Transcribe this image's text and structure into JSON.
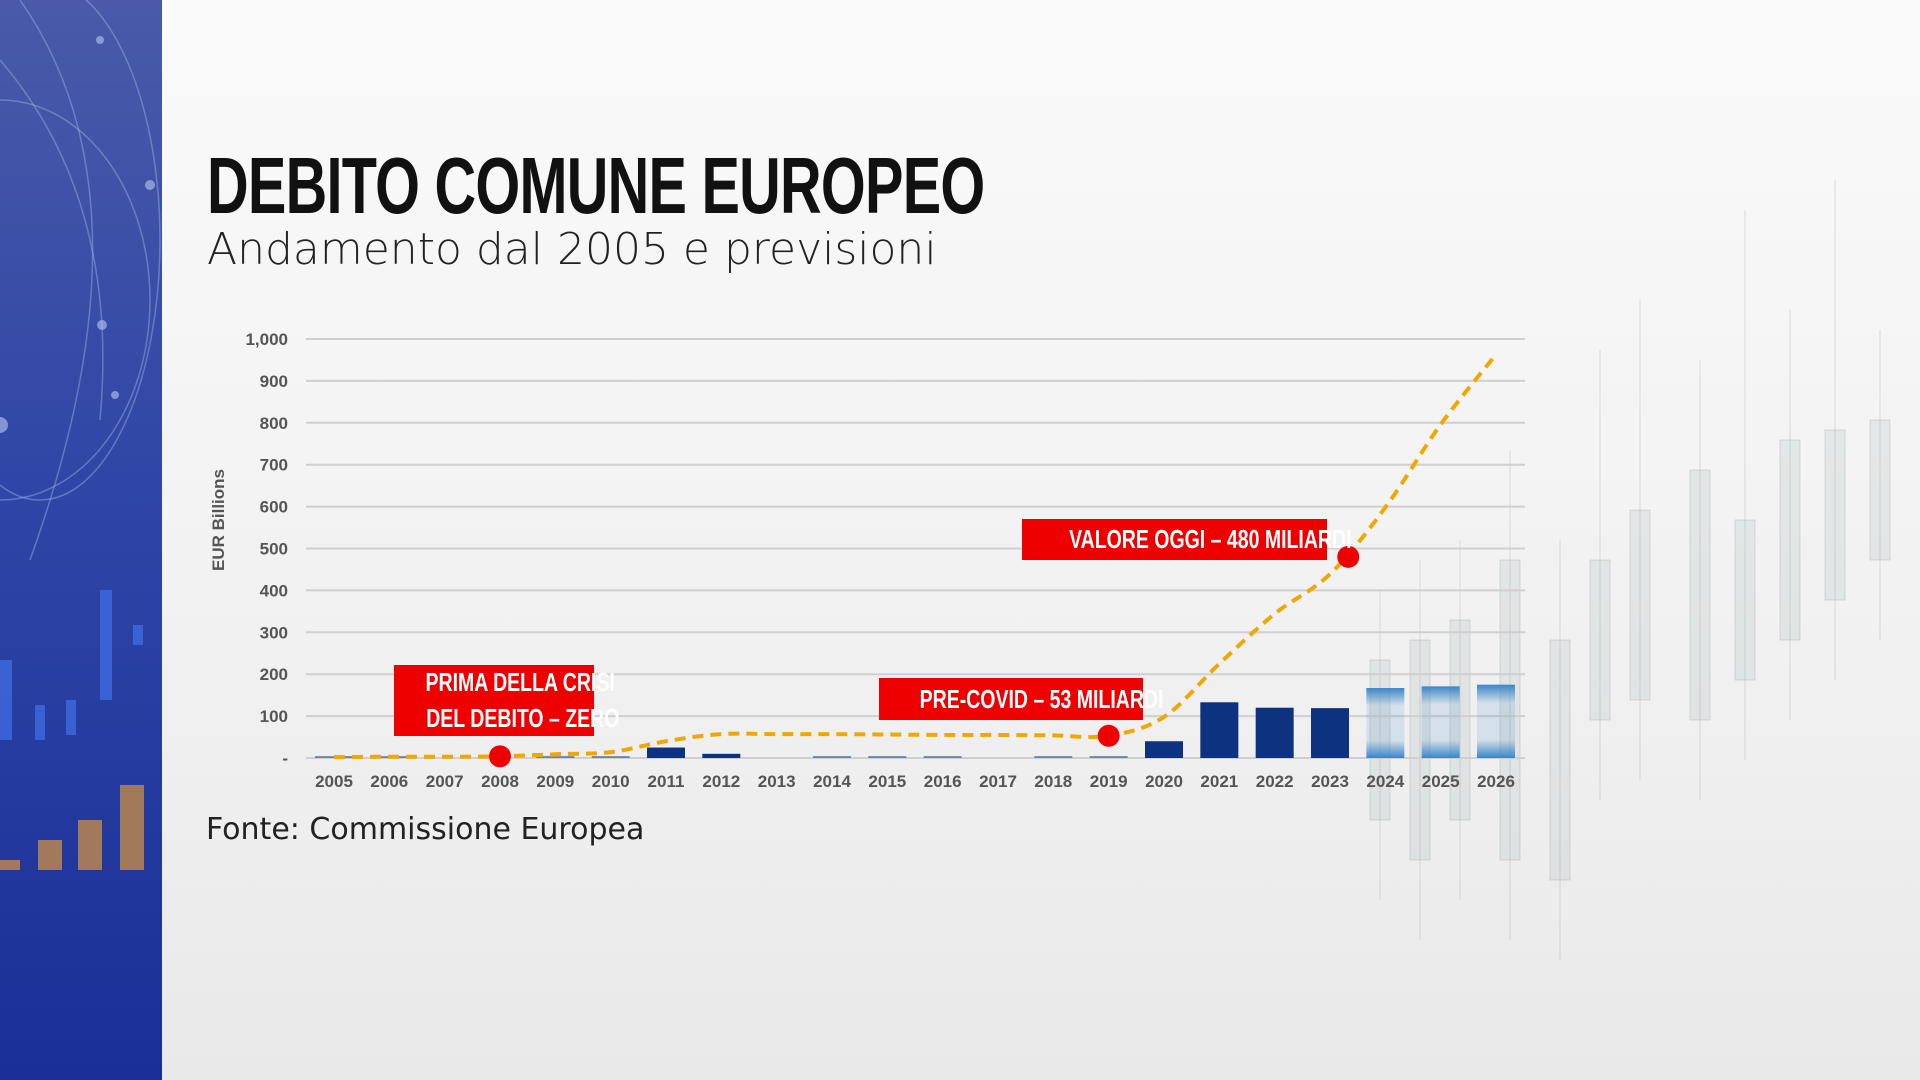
{
  "title": "DEBITO COMUNE EUROPEO",
  "subtitle": "Andamento dal 2005 e previsioni",
  "source": "Fonte: Commissione Europea",
  "colors": {
    "bar": "#0d3380",
    "forecast_bar": "#3b86c8",
    "line": "#f0a800",
    "callout": "#ee0000",
    "dot": "#ee0000"
  },
  "chart_data": {
    "type": "bar",
    "title": "",
    "xlabel": "",
    "ylabel": "EUR Billions",
    "ylim": [
      0,
      1000
    ],
    "yticks": [
      0,
      100,
      200,
      300,
      400,
      500,
      600,
      700,
      800,
      900,
      1000
    ],
    "ytick_labels": [
      "-",
      "100",
      "200",
      "300",
      "400",
      "500",
      "600",
      "700",
      "800",
      "900",
      "1,000"
    ],
    "grid": true,
    "categories": [
      "2005",
      "2006",
      "2007",
      "2008",
      "2009",
      "2010",
      "2011",
      "2012",
      "2013",
      "2014",
      "2015",
      "2016",
      "2017",
      "2018",
      "2019",
      "2020",
      "2021",
      "2022",
      "2023",
      "2024",
      "2025",
      "2026"
    ],
    "series": [
      {
        "type": "bar",
        "values": [
          3,
          1,
          0,
          0,
          5,
          2,
          25,
          10,
          0,
          1,
          4,
          2,
          0,
          3,
          2,
          40,
          133,
          120,
          119,
          167,
          171,
          175
        ],
        "forecast_from": "2024"
      },
      {
        "type": "line",
        "style": "dashed",
        "values": [
          2,
          3,
          3,
          4,
          9,
          14,
          40,
          57,
          57,
          57,
          56,
          55,
          55,
          54,
          53,
          98,
          225,
          344,
          439,
          598,
          796,
          963
        ]
      }
    ],
    "annotations": [
      {
        "lines": [
          "PRIMA DELLA CRISI",
          "DEL DEBITO – ZERO"
        ],
        "x": 2008,
        "y": 4
      },
      {
        "lines": [
          "PRE-COVID – 53 MILIARDI"
        ],
        "x": 2019,
        "y": 53
      },
      {
        "lines": [
          "VALORE OGGI – 480 MILIARDI"
        ],
        "x": 2023.33,
        "y": 480
      }
    ]
  }
}
